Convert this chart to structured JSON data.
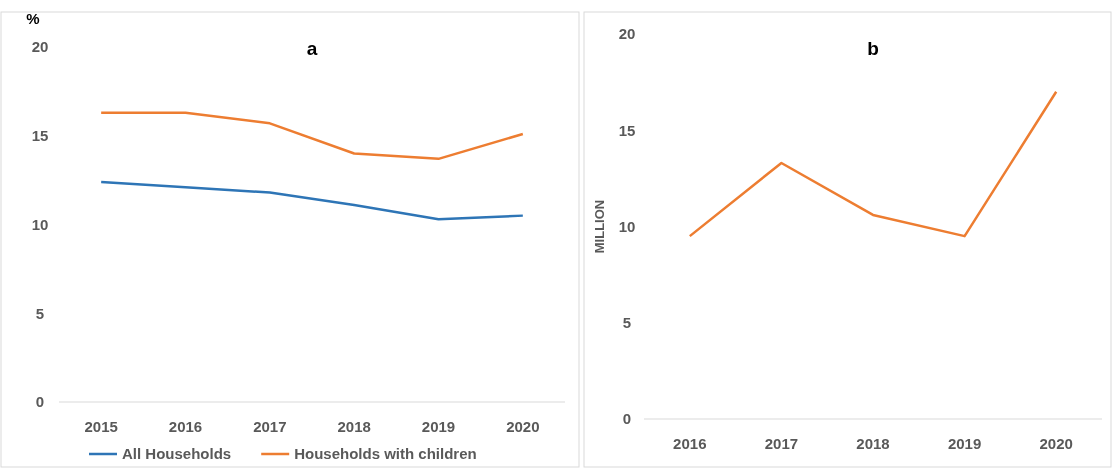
{
  "chart_data": [
    {
      "type": "line",
      "title": "a",
      "ylabel": "%",
      "categories": [
        "2015",
        "2016",
        "2017",
        "2018",
        "2019",
        "2020"
      ],
      "ylim": [
        0,
        20
      ],
      "yticks": [
        0,
        5,
        10,
        15,
        20
      ],
      "legend": "bottom",
      "series": [
        {
          "name": "All Households",
          "color": "#2e75b6",
          "values": [
            12.4,
            12.1,
            11.8,
            11.1,
            10.3,
            10.5
          ]
        },
        {
          "name": "Households with children",
          "color": "#ed7d31",
          "values": [
            16.3,
            16.3,
            15.7,
            14.0,
            13.7,
            15.1
          ]
        }
      ]
    },
    {
      "type": "line",
      "title": "b",
      "ylabel": "MILLION",
      "categories": [
        "2016",
        "2017",
        "2018",
        "2019",
        "2020"
      ],
      "ylim": [
        0,
        20
      ],
      "yticks": [
        0,
        5,
        10,
        15,
        20
      ],
      "series": [
        {
          "color": "#ed7d31",
          "values": [
            9.5,
            13.3,
            10.6,
            9.5,
            17.0
          ]
        }
      ]
    }
  ]
}
